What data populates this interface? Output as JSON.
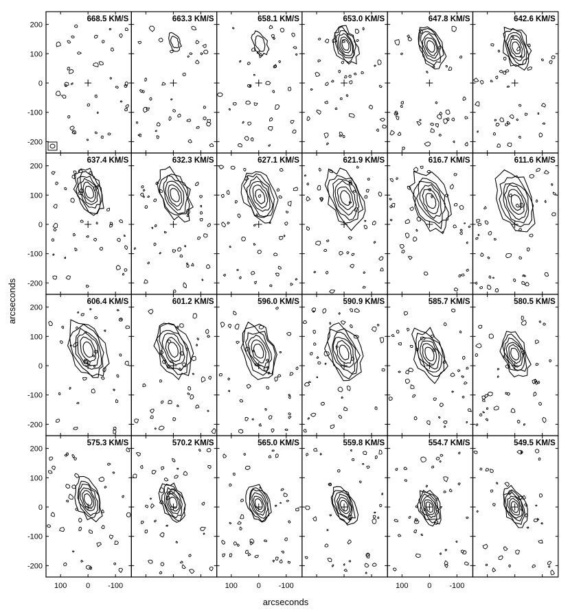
{
  "figure": {
    "y_axis_label": "arcseconds",
    "x_axis_label": "arcseconds",
    "x_ticks": [
      "100",
      "0",
      "-100"
    ],
    "y_ticks": [
      "200",
      "100",
      "0",
      "-100",
      "-200"
    ],
    "channel_labels": [
      "668.5 KM/S",
      "663.3 KM/S",
      "658.1 KM/S",
      "653.0 KM/S",
      "647.8 KM/S",
      "642.6 KM/S",
      "637.4 KM/S",
      "632.3 KM/S",
      "627.1 KM/S",
      "621.9 KM/S",
      "616.7 KM/S",
      "611.6 KM/S",
      "606.4 KM/S",
      "601.2 KM/S",
      "596.0 KM/S",
      "590.9 KM/S",
      "585.7 KM/S",
      "580.5 KM/S",
      "575.3 KM/S",
      "570.2 KM/S",
      "565.0 KM/S",
      "559.8 KM/S",
      "554.7 KM/S",
      "549.5 KM/S"
    ],
    "colors": {
      "ink": "#000000",
      "background": "#ffffff"
    }
  }
}
